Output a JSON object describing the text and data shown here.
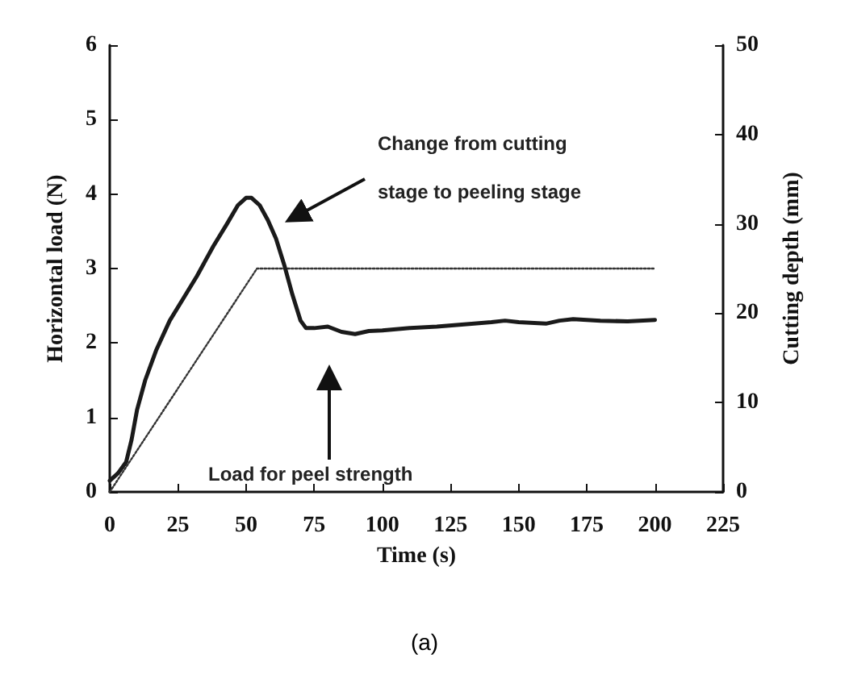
{
  "chart_data": {
    "type": "line",
    "xlabel": "Time (s)",
    "ylabel": "Horizontal load (N)",
    "y2label": "Cutting depth (mm)",
    "xlim": [
      0,
      225
    ],
    "xticks": [
      0,
      25,
      50,
      75,
      100,
      125,
      150,
      175,
      200,
      225
    ],
    "ylim": [
      0,
      6
    ],
    "yticks": [
      0,
      1,
      2,
      3,
      4,
      5,
      6
    ],
    "y2lim": [
      0,
      50
    ],
    "y2ticks": [
      0,
      10,
      20,
      30,
      40,
      50
    ],
    "grid": false,
    "marker": "none",
    "series": [
      {
        "color": "#1a1a1a",
        "line_style": "solid",
        "x": [
          0,
          3,
          6,
          8,
          10,
          13,
          17,
          22,
          27,
          32,
          38,
          43,
          47,
          50,
          52,
          55,
          58,
          61,
          64,
          67,
          70,
          72,
          75,
          80,
          85,
          90,
          95,
          100,
          110,
          120,
          130,
          140,
          145,
          150,
          160,
          165,
          170,
          180,
          190,
          200
        ],
        "values": [
          0.15,
          0.25,
          0.4,
          0.7,
          1.1,
          1.5,
          1.9,
          2.3,
          2.6,
          2.9,
          3.3,
          3.6,
          3.85,
          3.95,
          3.95,
          3.85,
          3.65,
          3.4,
          3.05,
          2.65,
          2.3,
          2.2,
          2.2,
          2.22,
          2.15,
          2.12,
          2.16,
          2.17,
          2.2,
          2.22,
          2.25,
          2.28,
          2.3,
          2.28,
          2.26,
          2.3,
          2.32,
          2.3,
          2.29,
          2.31
        ]
      },
      {
        "color": "#333333",
        "line_style": "dotted",
        "axis": "y2",
        "x": [
          0,
          54,
          60,
          200
        ],
        "values": [
          0,
          25,
          25,
          25
        ]
      }
    ],
    "annotations": [
      "Change from cutting stage to peeling stage",
      "Load for peel strength",
      "(a)"
    ]
  }
}
